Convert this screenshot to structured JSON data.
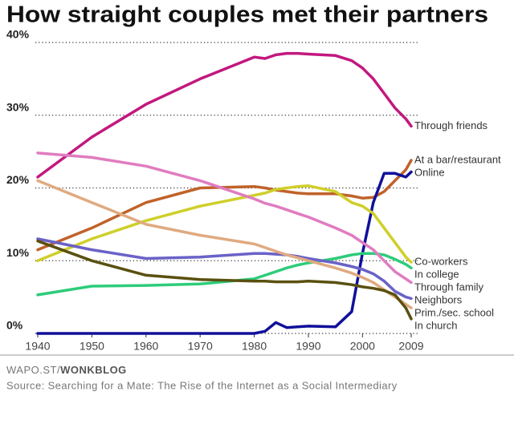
{
  "chart_data": {
    "type": "line",
    "title": "How straight couples met their partners",
    "credit_site": "WAPO.ST/",
    "credit_blog": "WONKBLOG",
    "source": "Source: Searching for a Mate: The Rise of the Internet as a Social Intermediary",
    "x": [
      1940,
      1950,
      1960,
      1970,
      1980,
      1982,
      1984,
      1986,
      1988,
      1990,
      1995,
      1998,
      2000,
      2002,
      2004,
      2006,
      2008,
      2009
    ],
    "xlim": [
      1940,
      2009
    ],
    "xticks": [
      1940,
      1950,
      1960,
      1970,
      1980,
      1990,
      2000,
      2009
    ],
    "ylim": [
      0,
      40
    ],
    "yticks": [
      {
        "value": 0,
        "label": "0%"
      },
      {
        "value": 10,
        "label": "10%"
      },
      {
        "value": 20,
        "label": "20%"
      },
      {
        "value": 30,
        "label": "30%"
      },
      {
        "value": 40,
        "label": "40%"
      }
    ],
    "grid": true,
    "series": [
      {
        "name": "Through friends",
        "color": "#c2187f",
        "values": [
          21.5,
          27,
          31.5,
          35,
          38,
          37.8,
          38.3,
          38.5,
          38.5,
          38.4,
          38.2,
          37.5,
          36.5,
          35,
          33,
          31,
          29.5,
          28.5
        ]
      },
      {
        "name": "At a bar/restaurant",
        "color": "#c0622a",
        "values": [
          11.5,
          14.5,
          18,
          20,
          20.2,
          20,
          19.7,
          19.5,
          19.3,
          19.2,
          19.2,
          18.9,
          18.6,
          18.7,
          19.5,
          21,
          22.5,
          23.8
        ]
      },
      {
        "name": "Online",
        "color": "#10109a",
        "values": [
          0,
          0,
          0,
          0,
          0,
          0.3,
          1.5,
          0.8,
          0.9,
          1,
          0.9,
          3,
          11,
          18,
          22,
          22,
          21.5,
          22.2
        ]
      },
      {
        "name": "Co-workers",
        "color": "#cfcf2a",
        "values": [
          10,
          13,
          15.5,
          17.5,
          19,
          19.3,
          19.8,
          20,
          20.2,
          20.3,
          19.5,
          18,
          17.5,
          16.5,
          14.5,
          12.5,
          10.5,
          9.8
        ]
      },
      {
        "name": "In college",
        "color": "#2dcc7a",
        "values": [
          5.3,
          6.5,
          6.6,
          6.8,
          7.5,
          8,
          8.5,
          9,
          9.4,
          9.7,
          10.3,
          10.8,
          11,
          11,
          10.8,
          10.2,
          9.5,
          9
        ]
      },
      {
        "name": "Through family",
        "color": "#e07cc0",
        "values": [
          24.8,
          24.2,
          23,
          21,
          18.5,
          17.9,
          17.5,
          17,
          16.5,
          16,
          14.5,
          13.5,
          12.5,
          11.5,
          10,
          8.5,
          7.5,
          7
        ]
      },
      {
        "name": "Neighbors",
        "color": "#6a62c8",
        "values": [
          13,
          11.5,
          10.3,
          10.5,
          11,
          11,
          10.9,
          10.8,
          10.6,
          10.3,
          9.7,
          9.2,
          8.8,
          8.2,
          7.2,
          5.8,
          5,
          4.8
        ]
      },
      {
        "name": "Prim./sec. school",
        "color": "#e0aa80",
        "values": [
          21,
          18,
          15,
          13.5,
          12.3,
          11.8,
          11.3,
          10.8,
          10.4,
          10,
          9,
          8.3,
          7.7,
          7,
          6,
          5,
          4,
          3.5
        ]
      },
      {
        "name": "In church",
        "color": "#5a5010",
        "values": [
          12.7,
          10,
          8,
          7.4,
          7.2,
          7.2,
          7.1,
          7.1,
          7.1,
          7.2,
          7,
          6.7,
          6.4,
          6.2,
          5.9,
          5.3,
          3.5,
          2
        ]
      }
    ]
  }
}
